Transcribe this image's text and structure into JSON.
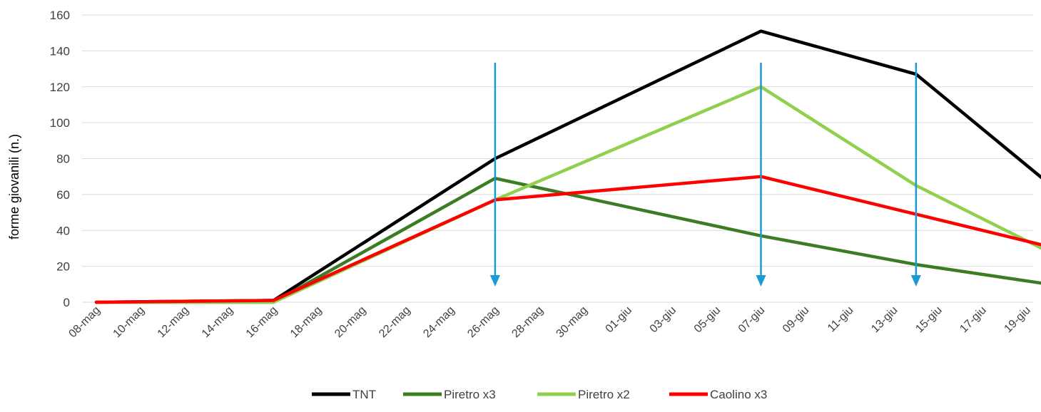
{
  "chart_data": {
    "type": "line",
    "title": "",
    "xlabel": "",
    "ylabel": "forme giovanili (n.)",
    "ylim": [
      0,
      160
    ],
    "yticks": [
      0,
      20,
      40,
      60,
      80,
      100,
      120,
      140,
      160
    ],
    "categories": [
      "08-mag",
      "10-mag",
      "12-mag",
      "14-mag",
      "16-mag",
      "18-mag",
      "20-mag",
      "22-mag",
      "24-mag",
      "26-mag",
      "28-mag",
      "30-mag",
      "01-giu",
      "03-giu",
      "05-giu",
      "07-giu",
      "09-giu",
      "11-giu",
      "13-giu",
      "15-giu",
      "17-giu",
      "19-giu"
    ],
    "grid": "horizontal",
    "legend": "bottom",
    "series": [
      {
        "name": "TNT",
        "color": "#000000",
        "x": [
          "08-mag",
          "16-mag",
          "26-mag",
          "07-giu",
          "14-giu",
          "20-giu"
        ],
        "values": [
          0,
          1,
          80,
          151,
          127,
          66
        ]
      },
      {
        "name": "Piretro x3",
        "color": "#3b7d23",
        "x": [
          "08-mag",
          "16-mag",
          "26-mag",
          "07-giu",
          "14-giu",
          "20-giu"
        ],
        "values": [
          0,
          0,
          69,
          37,
          21,
          10
        ]
      },
      {
        "name": "Piretro x2",
        "color": "#8fd14f",
        "x": [
          "08-mag",
          "16-mag",
          "26-mag",
          "07-giu",
          "14-giu",
          "20-giu"
        ],
        "values": [
          0,
          0,
          57,
          120,
          65,
          28
        ]
      },
      {
        "name": "Caolino x3",
        "color": "#ff0000",
        "x": [
          "08-mag",
          "16-mag",
          "26-mag",
          "07-giu",
          "14-giu",
          "20-giu"
        ],
        "values": [
          0,
          1,
          57,
          70,
          49,
          31
        ]
      }
    ],
    "annotations": [
      {
        "type": "arrow-down",
        "x": "26-mag",
        "color": "#1a9ad6"
      },
      {
        "type": "arrow-down",
        "x": "07-giu",
        "color": "#1a9ad6"
      },
      {
        "type": "arrow-down",
        "x": "14-giu",
        "color": "#1a9ad6"
      }
    ]
  }
}
